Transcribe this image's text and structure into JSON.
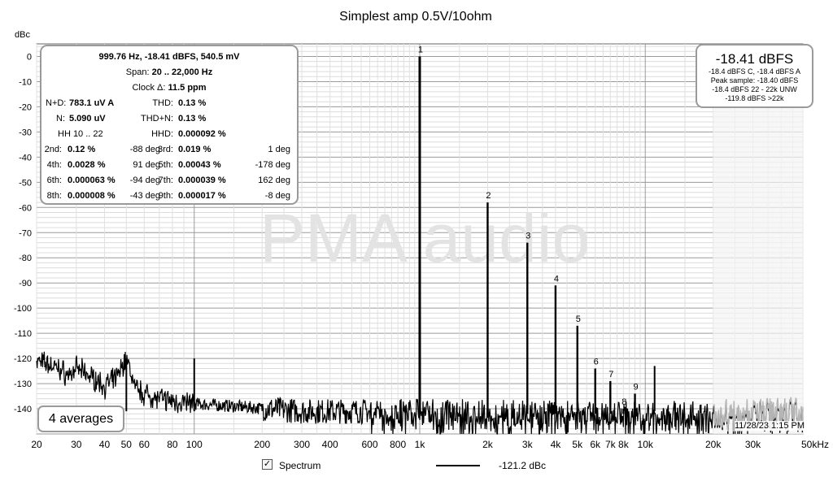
{
  "chart_data": {
    "type": "line",
    "title": "Simplest amp 0.5V/10ohm",
    "ylabel": "dBc",
    "xlabel": "",
    "xscale": "log",
    "xlim": [
      20,
      50000
    ],
    "ylim": [
      -150,
      5
    ],
    "grid": true,
    "x_ticks": [
      {
        "v": 20,
        "t": "20"
      },
      {
        "v": 30,
        "t": "30"
      },
      {
        "v": 40,
        "t": "40"
      },
      {
        "v": 50,
        "t": "50"
      },
      {
        "v": 60,
        "t": "60"
      },
      {
        "v": 80,
        "t": "80"
      },
      {
        "v": 100,
        "t": "100"
      },
      {
        "v": 200,
        "t": "200"
      },
      {
        "v": 300,
        "t": "300"
      },
      {
        "v": 400,
        "t": "400"
      },
      {
        "v": 600,
        "t": "600"
      },
      {
        "v": 800,
        "t": "800"
      },
      {
        "v": 1000,
        "t": "1k"
      },
      {
        "v": 2000,
        "t": "2k"
      },
      {
        "v": 3000,
        "t": "3k"
      },
      {
        "v": 4000,
        "t": "4k"
      },
      {
        "v": 5000,
        "t": "5k"
      },
      {
        "v": 6000,
        "t": "6k"
      },
      {
        "v": 7000,
        "t": "7k"
      },
      {
        "v": 8000,
        "t": "8k"
      },
      {
        "v": 10000,
        "t": "10k"
      },
      {
        "v": 20000,
        "t": "20k"
      },
      {
        "v": 30000,
        "t": "30k"
      },
      {
        "v": 50000,
        "t": "50kHz"
      }
    ],
    "y_ticks": [
      0,
      -10,
      -20,
      -30,
      -40,
      -50,
      -60,
      -70,
      -80,
      -90,
      -100,
      -110,
      -120,
      -130,
      -140
    ],
    "harmonics": [
      {
        "label": "1",
        "x": 999.76,
        "y": 0
      },
      {
        "label": "2",
        "x": 2000,
        "y": -58
      },
      {
        "label": "3",
        "x": 3000,
        "y": -74
      },
      {
        "label": "4",
        "x": 4000,
        "y": -91
      },
      {
        "label": "5",
        "x": 5000,
        "y": -107
      },
      {
        "label": "6",
        "x": 6000,
        "y": -124
      },
      {
        "label": "7",
        "x": 7000,
        "y": -129
      },
      {
        "label": "8",
        "x": 8000,
        "y": -140
      },
      {
        "label": "9",
        "x": 9000,
        "y": -134
      }
    ],
    "other_spurs": [
      {
        "x": 50,
        "y": -120
      },
      {
        "x": 100,
        "y": -120
      },
      {
        "x": 11000,
        "y": -123
      }
    ],
    "low_freq_profile": [
      [
        20,
        -121
      ],
      [
        22,
        -122
      ],
      [
        25,
        -124
      ],
      [
        28,
        -127
      ],
      [
        30,
        -124
      ],
      [
        33,
        -126
      ],
      [
        36,
        -128
      ],
      [
        40,
        -131
      ],
      [
        45,
        -128
      ],
      [
        50,
        -120
      ],
      [
        55,
        -132
      ],
      [
        60,
        -134
      ],
      [
        70,
        -136
      ],
      [
        80,
        -137
      ],
      [
        100,
        -138
      ],
      [
        150,
        -139
      ],
      [
        300,
        -141
      ],
      [
        1000,
        -141
      ],
      [
        20000,
        -142
      ],
      [
        50000,
        -141
      ]
    ],
    "series": [
      {
        "name": "Spectrum",
        "color": "#000000",
        "level_readout": "-121.2 dBc"
      }
    ],
    "watermark": "PMA audio"
  },
  "info_box": {
    "header": "999.76 Hz, -18.41 dBFS, 540.5 mV",
    "span_label": "Span:",
    "span_value": "20 .. 22,000 Hz",
    "clock_label": "Clock Δ:",
    "clock_value": "11.5 ppm",
    "nd_label": "N+D:",
    "nd_value": "783.1 uV A",
    "thd_label": "THD:",
    "thd_value": "0.13 %",
    "n_label": "N:",
    "n_value": "5.090 uV",
    "thdn_label": "THD+N:",
    "thdn_value": "0.13 %",
    "hh_label": "HH 10 .. 22",
    "hhd_label": "HHD:",
    "hhd_value": "0.000092 %",
    "harm_rows": [
      {
        "l_label": "2nd:",
        "l_value": "0.12 %",
        "l_deg": "-88 deg",
        "r_label": "3rd:",
        "r_value": "0.019 %",
        "r_deg": "1 deg"
      },
      {
        "l_label": "4th:",
        "l_value": "0.0028 %",
        "l_deg": "91 deg",
        "r_label": "5th:",
        "r_value": "0.00043 %",
        "r_deg": "-178 deg"
      },
      {
        "l_label": "6th:",
        "l_value": "0.000063 %",
        "l_deg": "-94 deg",
        "r_label": "7th:",
        "r_value": "0.000039 %",
        "r_deg": "162 deg"
      },
      {
        "l_label": "8th:",
        "l_value": "0.000008 %",
        "l_deg": "-43 deg",
        "r_label": "9th:",
        "r_value": "0.000017 %",
        "r_deg": "-8 deg"
      }
    ]
  },
  "level_box": {
    "main": "-18.41 dBFS",
    "lines": [
      "-18.4 dBFS C, -18.4 dBFS A",
      "Peak sample: -18.40 dBFS",
      "-18.4 dBFS 22 - 22k UNW",
      "-119.8 dBFS >22k"
    ]
  },
  "averages": "4 averages",
  "timestamp": "11/28/23 1:15 PM",
  "legend": {
    "checked": "✓",
    "label": "Spectrum",
    "value": "-121.2 dBc"
  }
}
